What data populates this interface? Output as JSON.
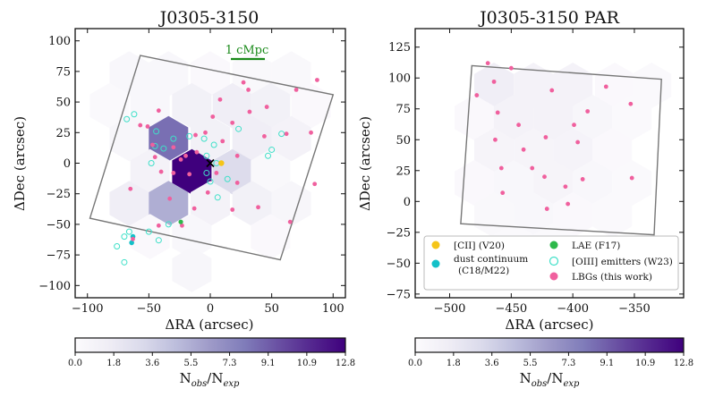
{
  "colorbar_ticks": [
    "0.0",
    "1.8",
    "3.6",
    "5.5",
    "7.3",
    "9.1",
    "10.9",
    "12.8"
  ],
  "colorbar_label_main": "N",
  "colorbar_label_sub1": "obs",
  "colorbar_label_slash": "/N",
  "colorbar_label_sub2": "exp",
  "colormap": [
    "#fcfbfd",
    "#efedf5",
    "#dadaeb",
    "#bcbddc",
    "#9e9ac8",
    "#807dba",
    "#6a51a3",
    "#54278f",
    "#3f007d"
  ],
  "scalebar_label": "1 cMpc",
  "scalebar_color": "#1a8a1a",
  "legend": [
    {
      "label": "[CII] (V20)",
      "marker": "filled",
      "color": "#f5c518"
    },
    {
      "label": "LAE (F17)",
      "marker": "filled",
      "color": "#2db84a"
    },
    {
      "label": "dust continuum",
      "label2": "(C18/M22)",
      "marker": "filled",
      "color": "#13c0c8"
    },
    {
      "label": "[OIII] emitters (W23)",
      "marker": "open",
      "color": "#3fe0c8"
    },
    {
      "label": "LBGs (this work)",
      "marker": "filled",
      "color": "#f0609e"
    }
  ],
  "chart_data": [
    {
      "type": "scatter",
      "title": "J0305-3150",
      "xlabel": "ΔRA (arcsec)",
      "ylabel": "ΔDec (arcsec)",
      "xlim": [
        -110,
        110
      ],
      "ylim": [
        -110,
        110
      ],
      "xticks": [
        -100,
        -50,
        0,
        50,
        100
      ],
      "xtick_labels": [
        "−100",
        "−50",
        "0",
        "50",
        "100"
      ],
      "yticks": [
        -100,
        -75,
        -50,
        -25,
        0,
        25,
        50,
        75,
        100
      ],
      "ytick_labels": [
        "−100",
        "−75",
        "−50",
        "−25",
        "0",
        "25",
        "50",
        "75",
        "100"
      ],
      "hex_radius": 18.5,
      "hexbins": [
        {
          "x": -66,
          "y": 73,
          "v": 0.5
        },
        {
          "x": -34,
          "y": 73,
          "v": 0.5
        },
        {
          "x": 0,
          "y": 73,
          "v": 0.3
        },
        {
          "x": 34,
          "y": 73,
          "v": 0.4
        },
        {
          "x": 66,
          "y": 73,
          "v": 0.4
        },
        {
          "x": 82,
          "y": 47,
          "v": 0.3
        },
        {
          "x": -82,
          "y": 47,
          "v": 0.2
        },
        {
          "x": -49,
          "y": 47,
          "v": 0.5
        },
        {
          "x": -15,
          "y": 47,
          "v": 1.2
        },
        {
          "x": 18,
          "y": 47,
          "v": 1.5
        },
        {
          "x": 49,
          "y": 47,
          "v": 1.2
        },
        {
          "x": -66,
          "y": 20,
          "v": 0.6
        },
        {
          "x": -34,
          "y": 20,
          "v": 8.5
        },
        {
          "x": 0,
          "y": 20,
          "v": 1.2
        },
        {
          "x": 34,
          "y": 20,
          "v": 1.5
        },
        {
          "x": 66,
          "y": 20,
          "v": 1.0
        },
        {
          "x": -49,
          "y": -7,
          "v": 1.0
        },
        {
          "x": -15,
          "y": -7,
          "v": 12.8
        },
        {
          "x": 18,
          "y": -7,
          "v": 3.0
        },
        {
          "x": 49,
          "y": -7,
          "v": 0.4
        },
        {
          "x": -66,
          "y": -33,
          "v": 1.5
        },
        {
          "x": -34,
          "y": -33,
          "v": 5.5
        },
        {
          "x": 0,
          "y": -33,
          "v": 1.0
        },
        {
          "x": 34,
          "y": -33,
          "v": 1.2
        },
        {
          "x": 66,
          "y": -33,
          "v": 0.6
        },
        {
          "x": -49,
          "y": -60,
          "v": 0.3
        },
        {
          "x": 49,
          "y": -60,
          "v": 0.3
        },
        {
          "x": -15,
          "y": -60,
          "v": 0.5
        },
        {
          "x": -15,
          "y": -87,
          "v": 0.6
        }
      ],
      "footprint": [
        [
          -57,
          88
        ],
        [
          100,
          56
        ],
        [
          57,
          -79
        ],
        [
          -98,
          -45
        ]
      ],
      "lbgs": [
        [
          -42,
          43
        ],
        [
          -51,
          30
        ],
        [
          -47,
          15
        ],
        [
          -45,
          5
        ],
        [
          -40,
          -7
        ],
        [
          -30,
          13
        ],
        [
          -17,
          -9
        ],
        [
          -4,
          25
        ],
        [
          2,
          38
        ],
        [
          8,
          52
        ],
        [
          10,
          18
        ],
        [
          5,
          -8
        ],
        [
          22,
          6
        ],
        [
          27,
          66
        ],
        [
          31,
          60
        ],
        [
          32,
          42
        ],
        [
          46,
          46
        ],
        [
          44,
          22
        ],
        [
          62,
          24
        ],
        [
          70,
          60
        ],
        [
          87,
          68
        ],
        [
          82,
          25
        ],
        [
          22,
          -16
        ],
        [
          -12,
          23
        ],
        [
          -11,
          9
        ],
        [
          -20,
          6
        ],
        [
          -24,
          3
        ],
        [
          -57,
          31
        ],
        [
          -65,
          -21
        ],
        [
          -33,
          -29
        ],
        [
          -23,
          -51
        ],
        [
          -30,
          -8
        ],
        [
          -42,
          -51
        ],
        [
          -13,
          -37
        ],
        [
          -2,
          -24
        ],
        [
          18,
          -38
        ],
        [
          39,
          -36
        ],
        [
          65,
          -48
        ],
        [
          85,
          -17
        ],
        [
          18,
          33
        ],
        [
          -63,
          -62
        ]
      ],
      "oiii": [
        [
          -68,
          36
        ],
        [
          -44,
          26
        ],
        [
          -45,
          14
        ],
        [
          -48,
          0
        ],
        [
          -38,
          12
        ],
        [
          -17,
          22
        ],
        [
          -30,
          20
        ],
        [
          -5,
          20
        ],
        [
          -3,
          6
        ],
        [
          3,
          15
        ],
        [
          5,
          0
        ],
        [
          -3,
          -8
        ],
        [
          0,
          -15
        ],
        [
          6,
          -28
        ],
        [
          14,
          -13
        ],
        [
          23,
          28
        ],
        [
          58,
          24
        ],
        [
          47,
          6
        ],
        [
          -34,
          -50
        ],
        [
          -42,
          -63
        ],
        [
          -50,
          -56
        ],
        [
          -66,
          -56
        ],
        [
          -70,
          -60
        ],
        [
          -76,
          -68
        ],
        [
          -70,
          -81
        ],
        [
          -62,
          40
        ],
        [
          50,
          11
        ]
      ],
      "dust": [
        [
          -63,
          -60
        ],
        [
          -64,
          -65
        ]
      ],
      "cii": [
        [
          9,
          0
        ]
      ],
      "lae": [
        [
          -24,
          -48
        ]
      ],
      "quasar": [
        0,
        0
      ]
    },
    {
      "type": "scatter",
      "title": "J0305-3150 PAR",
      "xlabel": "ΔRA (arcsec)",
      "ylabel": "ΔDec (arcsec)",
      "xlim": [
        -528,
        -310
      ],
      "ylim": [
        -78,
        140
      ],
      "xticks": [
        -500,
        -450,
        -400,
        -350
      ],
      "xtick_labels": [
        "−500",
        "−450",
        "−400",
        "−350"
      ],
      "yticks": [
        -75,
        -50,
        -25,
        0,
        25,
        50,
        75,
        100,
        125
      ],
      "ytick_labels": [
        "−75",
        "−50",
        "−25",
        "0",
        "25",
        "50",
        "75",
        "100",
        "125"
      ],
      "hex_radius": 18.5,
      "hexbins": [
        {
          "x": -464,
          "y": 94,
          "v": 1.5
        },
        {
          "x": -432,
          "y": 94,
          "v": 1.0
        },
        {
          "x": -400,
          "y": 94,
          "v": 1.0
        },
        {
          "x": -366,
          "y": 94,
          "v": 0.3
        },
        {
          "x": -336,
          "y": 94,
          "v": 0.2
        },
        {
          "x": -480,
          "y": 68,
          "v": 0.3
        },
        {
          "x": -448,
          "y": 68,
          "v": 1.0
        },
        {
          "x": -416,
          "y": 68,
          "v": 1.0
        },
        {
          "x": -384,
          "y": 68,
          "v": 0.6
        },
        {
          "x": -352,
          "y": 68,
          "v": 0.2
        },
        {
          "x": -464,
          "y": 41,
          "v": 0.8
        },
        {
          "x": -432,
          "y": 41,
          "v": 0.8
        },
        {
          "x": -400,
          "y": 41,
          "v": 0.9
        },
        {
          "x": -368,
          "y": 41,
          "v": 0.3
        },
        {
          "x": -480,
          "y": 15,
          "v": 0.3
        },
        {
          "x": -448,
          "y": 15,
          "v": 0.5
        },
        {
          "x": -416,
          "y": 15,
          "v": 0.8
        },
        {
          "x": -384,
          "y": 15,
          "v": 0.5
        },
        {
          "x": -352,
          "y": 15,
          "v": 0.2
        },
        {
          "x": -464,
          "y": -11,
          "v": 0.4
        },
        {
          "x": -432,
          "y": -11,
          "v": 0.5
        },
        {
          "x": -400,
          "y": -11,
          "v": 0.3
        },
        {
          "x": -368,
          "y": -11,
          "v": 0.2
        },
        {
          "x": -448,
          "y": -36,
          "v": 0.2
        },
        {
          "x": -416,
          "y": -36,
          "v": 0.2
        }
      ],
      "footprint": [
        [
          -482,
          110
        ],
        [
          -328,
          99
        ],
        [
          -334,
          -27
        ],
        [
          -491,
          -18
        ]
      ],
      "lbgs": [
        [
          -469,
          112
        ],
        [
          -464,
          97
        ],
        [
          -450,
          108
        ],
        [
          -478,
          86
        ],
        [
          -461,
          72
        ],
        [
          -444,
          62
        ],
        [
          -417,
          90
        ],
        [
          -399,
          62
        ],
        [
          -388,
          73
        ],
        [
          -373,
          93
        ],
        [
          -353,
          79
        ],
        [
          -463,
          50
        ],
        [
          -440,
          42
        ],
        [
          -433,
          27
        ],
        [
          -423,
          20
        ],
        [
          -422,
          52
        ],
        [
          -457,
          7
        ],
        [
          -421,
          -6
        ],
        [
          -406,
          12
        ],
        [
          -392,
          18
        ],
        [
          -404,
          -2
        ],
        [
          -396,
          48
        ],
        [
          -352,
          19
        ],
        [
          -458,
          27
        ]
      ],
      "oiii": [],
      "dust": [],
      "cii": [],
      "lae": [],
      "quasar": null
    }
  ]
}
